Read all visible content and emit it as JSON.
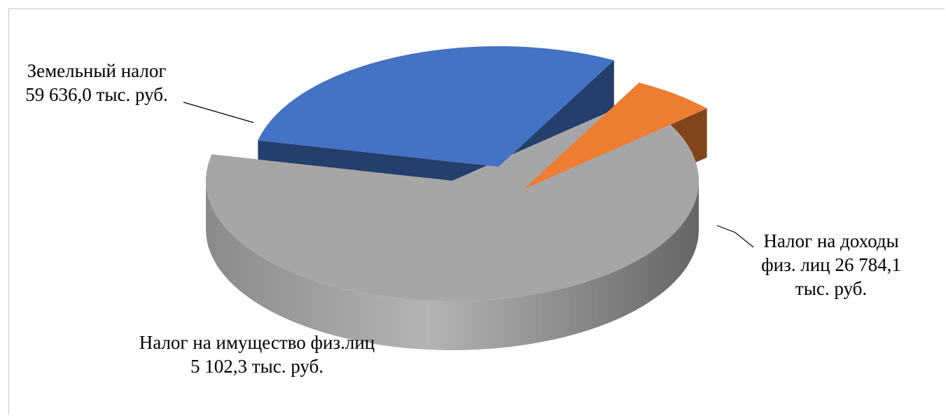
{
  "chart_data": {
    "type": "pie",
    "title": "",
    "categories": [
      "Земельный налог",
      "Налог на доходы физ. лиц",
      "Налог на имущество физ.лиц"
    ],
    "values": [
      59636.0,
      26784.1,
      5102.3
    ],
    "unit": "тыс. руб.",
    "colors": [
      "#a6a6a6",
      "#4472c4",
      "#ed7d31"
    ],
    "exploded": true,
    "style": "3d",
    "legend": "none",
    "labels": [
      {
        "lines": [
          "Земельный налог",
          "59 636,0 тыс. руб."
        ]
      },
      {
        "lines": [
          "Налог на доходы",
          "физ. лиц 26 784,1",
          "тыс. руб."
        ]
      },
      {
        "lines": [
          "Налог на имущество физ.лиц",
          "5 102,3 тыс. руб."
        ]
      }
    ]
  }
}
